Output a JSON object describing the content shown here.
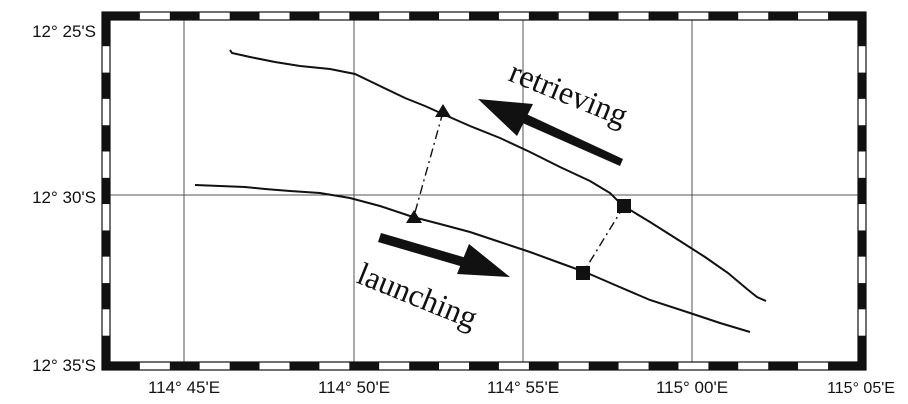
{
  "map": {
    "lat_labels": [
      "12° 25'S",
      "12° 30'S",
      "12° 35'S"
    ],
    "lon_labels": [
      "114° 45'E",
      "114° 50'E",
      "114° 55'E",
      "115° 00'E",
      "115° 05'E"
    ],
    "annotations": {
      "retrieving": "retrieving",
      "launching": "launching"
    },
    "colors": {
      "ink": "#111111",
      "grid": "#555555",
      "paper": "#ffffff"
    }
  }
}
